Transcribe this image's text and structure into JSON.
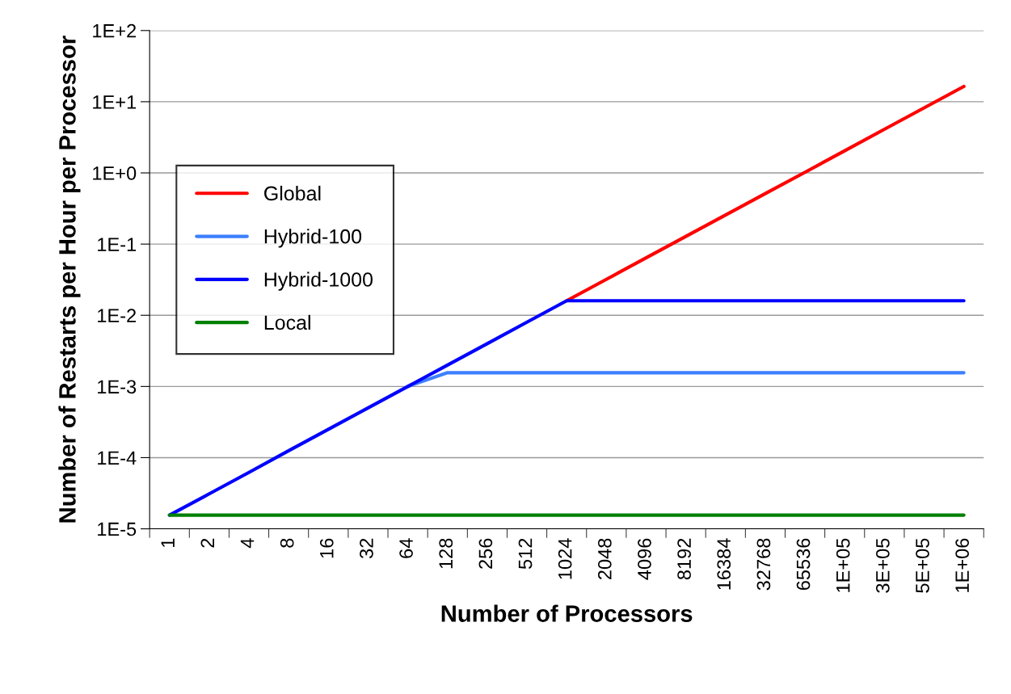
{
  "chart_data": {
    "type": "line",
    "xlabel": "Number of Processors",
    "ylabel": "Number of Restarts per Hour per Processor",
    "categories": [
      "1",
      "2",
      "4",
      "8",
      "16",
      "32",
      "64",
      "128",
      "256",
      "512",
      "1024",
      "2048",
      "4096",
      "8192",
      "16384",
      "32768",
      "65536",
      "1E+05",
      "3E+05",
      "5E+05",
      "1E+06"
    ],
    "series": [
      {
        "name": "Global",
        "color": "#ff0000",
        "values": [
          null,
          null,
          null,
          null,
          null,
          null,
          null,
          null,
          null,
          null,
          0.016,
          0.032,
          0.064,
          0.128,
          0.256,
          0.512,
          1.02,
          2.05,
          4.1,
          8.2,
          16.4
        ]
      },
      {
        "name": "Hybrid-100",
        "color": "#3d7fff",
        "values": [
          null,
          null,
          null,
          null,
          null,
          null,
          0.001,
          0.00156,
          0.00156,
          0.00156,
          0.00156,
          0.00156,
          0.00156,
          0.00156,
          0.00156,
          0.00156,
          0.00156,
          0.00156,
          0.00156,
          0.00156,
          0.00156
        ]
      },
      {
        "name": "Hybrid-1000",
        "color": "#0000ff",
        "values": [
          1.56e-05,
          3.1e-05,
          6.2e-05,
          0.000125,
          0.00025,
          0.0005,
          0.001,
          0.002,
          0.004,
          0.008,
          0.016,
          0.016,
          0.016,
          0.016,
          0.016,
          0.016,
          0.016,
          0.016,
          0.016,
          0.016,
          0.016
        ]
      },
      {
        "name": "Local",
        "color": "#008000",
        "values": [
          1.56e-05,
          1.56e-05,
          1.56e-05,
          1.56e-05,
          1.56e-05,
          1.56e-05,
          1.56e-05,
          1.56e-05,
          1.56e-05,
          1.56e-05,
          1.56e-05,
          1.56e-05,
          1.56e-05,
          1.56e-05,
          1.56e-05,
          1.56e-05,
          1.56e-05,
          1.56e-05,
          1.56e-05,
          1.56e-05,
          1.56e-05
        ]
      }
    ],
    "log": "y",
    "ylim": [
      1e-05,
      100
    ],
    "yticks": [
      {
        "value": 1e-05,
        "label": "1E-5"
      },
      {
        "value": 0.0001,
        "label": "1E-4"
      },
      {
        "value": 0.001,
        "label": "1E-3"
      },
      {
        "value": 0.01,
        "label": "1E-2"
      },
      {
        "value": 0.1,
        "label": "1E-1"
      },
      {
        "value": 1,
        "label": "1E+0"
      },
      {
        "value": 10,
        "label": "1E+1"
      },
      {
        "value": 100,
        "label": "1E+2"
      }
    ],
    "grid": "y",
    "legend": "center left",
    "marker": "none",
    "line_style": "solid"
  }
}
